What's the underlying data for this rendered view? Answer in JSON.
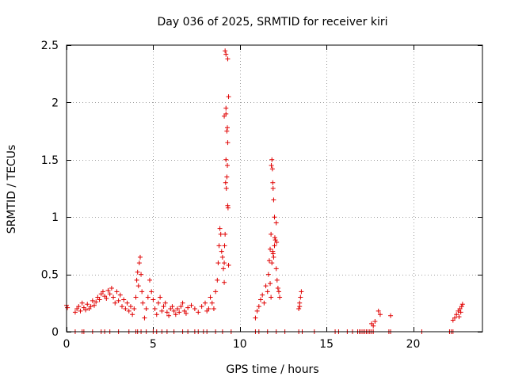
{
  "chart_data": {
    "type": "scatter",
    "title": "Day 036 of 2025, SRMTID for receiver kiri",
    "xlabel": "GPS time / hours",
    "ylabel": "SRMTID / TECUs",
    "xlim": [
      0,
      24
    ],
    "ylim": [
      0,
      2.5
    ],
    "xticks": [
      0,
      5,
      10,
      15,
      20
    ],
    "yticks": [
      0,
      0.5,
      1,
      1.5,
      2,
      2.5
    ],
    "xtick_labels": [
      "0",
      "5",
      "10",
      "15",
      "20"
    ],
    "ytick_labels": [
      "0",
      "0.5",
      "1",
      "1.5",
      "2",
      "2.5"
    ],
    "grid": true,
    "marker": "+",
    "series": [
      {
        "name": "SRMTID",
        "color": "#e00000",
        "x": [
          0.0,
          0.05,
          0.5,
          0.6,
          0.7,
          0.8,
          0.9,
          1.0,
          1.1,
          1.2,
          1.3,
          1.4,
          1.5,
          1.6,
          1.7,
          1.8,
          1.9,
          2.0,
          2.1,
          2.2,
          2.3,
          2.4,
          2.5,
          2.6,
          2.7,
          2.8,
          2.9,
          3.0,
          3.1,
          3.2,
          3.3,
          3.4,
          3.5,
          3.6,
          3.7,
          3.8,
          3.9,
          4.0,
          4.05,
          4.1,
          4.15,
          4.2,
          4.25,
          4.3,
          4.35,
          4.4,
          4.5,
          4.6,
          4.7,
          4.8,
          4.9,
          5.0,
          5.1,
          5.2,
          5.3,
          5.4,
          5.5,
          5.6,
          5.7,
          5.8,
          5.9,
          6.0,
          6.1,
          6.2,
          6.3,
          6.4,
          6.5,
          6.6,
          6.7,
          6.8,
          6.9,
          7.0,
          7.2,
          7.4,
          7.6,
          7.8,
          8.0,
          8.1,
          8.2,
          8.3,
          8.4,
          8.5,
          8.6,
          8.7,
          8.75,
          8.8,
          8.85,
          8.9,
          8.95,
          9.0,
          9.05,
          9.1,
          9.12,
          9.15,
          9.18,
          9.2,
          9.22,
          9.25,
          9.28,
          9.3,
          9.32,
          9.35,
          9.2,
          9.25,
          9.3,
          9.1,
          9.15,
          9.2,
          9.3,
          9.35,
          9.28,
          9.1,
          9.2,
          10.9,
          11.0,
          11.1,
          11.2,
          11.3,
          11.4,
          11.5,
          11.6,
          11.65,
          11.7,
          11.75,
          11.8,
          11.82,
          11.85,
          11.88,
          11.9,
          11.92,
          11.95,
          12.0,
          12.05,
          12.1,
          12.15,
          12.2,
          12.25,
          12.3,
          11.9,
          11.95,
          12.0,
          12.1,
          11.85,
          11.92,
          12.02,
          12.12,
          11.75,
          11.8,
          13.4,
          13.45,
          13.5,
          13.55,
          13.45,
          17.6,
          17.7,
          17.8,
          18.0,
          18.1,
          18.7,
          22.3,
          22.4,
          22.5,
          22.6,
          22.7,
          22.8,
          22.85,
          22.75,
          22.65
        ],
        "y": [
          0.23,
          0.21,
          0.17,
          0.2,
          0.22,
          0.18,
          0.25,
          0.21,
          0.19,
          0.24,
          0.2,
          0.22,
          0.27,
          0.23,
          0.26,
          0.3,
          0.28,
          0.33,
          0.35,
          0.31,
          0.29,
          0.36,
          0.33,
          0.38,
          0.3,
          0.25,
          0.35,
          0.27,
          0.32,
          0.22,
          0.28,
          0.2,
          0.25,
          0.18,
          0.22,
          0.15,
          0.2,
          0.3,
          0.45,
          0.52,
          0.4,
          0.6,
          0.65,
          0.5,
          0.35,
          0.25,
          0.12,
          0.2,
          0.3,
          0.45,
          0.35,
          0.28,
          0.2,
          0.15,
          0.25,
          0.3,
          0.18,
          0.22,
          0.25,
          0.17,
          0.14,
          0.2,
          0.22,
          0.18,
          0.15,
          0.2,
          0.17,
          0.22,
          0.25,
          0.18,
          0.16,
          0.21,
          0.23,
          0.2,
          0.17,
          0.22,
          0.25,
          0.18,
          0.2,
          0.3,
          0.25,
          0.2,
          0.35,
          0.45,
          0.6,
          0.75,
          0.9,
          0.85,
          0.7,
          0.65,
          0.55,
          0.6,
          0.75,
          0.85,
          1.3,
          1.5,
          1.25,
          1.35,
          1.45,
          1.1,
          1.08,
          0.58,
          1.95,
          1.75,
          1.65,
          1.88,
          2.45,
          2.42,
          2.38,
          2.05,
          1.78,
          0.43,
          1.9,
          0.12,
          0.18,
          0.22,
          0.28,
          0.32,
          0.25,
          0.4,
          0.35,
          0.5,
          0.62,
          0.72,
          0.85,
          1.45,
          1.5,
          1.42,
          1.3,
          1.25,
          1.15,
          1.0,
          0.8,
          0.55,
          0.45,
          0.38,
          0.35,
          0.3,
          0.7,
          0.65,
          0.75,
          0.95,
          0.6,
          0.68,
          0.82,
          0.78,
          0.42,
          0.3,
          0.2,
          0.25,
          0.3,
          0.35,
          0.22,
          0.07,
          0.05,
          0.09,
          0.18,
          0.15,
          0.14,
          0.1,
          0.12,
          0.15,
          0.18,
          0.2,
          0.22,
          0.24,
          0.17,
          0.13
        ],
        "zero_x": [
          0.5,
          0.9,
          1.0,
          1.5,
          2.0,
          2.2,
          2.5,
          3.0,
          3.6,
          4.0,
          4.1,
          4.3,
          4.6,
          5.0,
          5.2,
          5.5,
          5.8,
          6.2,
          6.7,
          7.0,
          7.4,
          7.6,
          7.9,
          8.1,
          8.6,
          9.0,
          9.5,
          10.9,
          11.1,
          11.6,
          12.1,
          12.6,
          13.4,
          13.6,
          14.3,
          15.5,
          15.7,
          16.2,
          16.5,
          16.8,
          16.9,
          17.0,
          17.1,
          17.2,
          17.3,
          17.4,
          17.5,
          17.6,
          17.7,
          18.6,
          18.7,
          20.5,
          22.1,
          22.2,
          22.3
        ]
      }
    ]
  }
}
